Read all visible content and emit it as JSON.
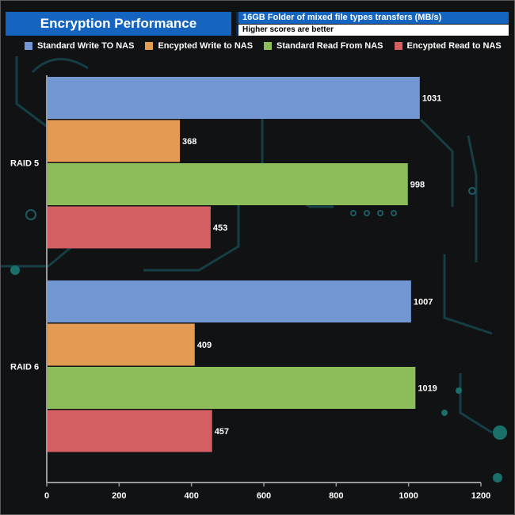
{
  "header": {
    "title": "Encryption Performance",
    "subtitle": "16GB Folder of mixed file types transfers (MB/s)",
    "note": "Higher scores are better"
  },
  "colors": {
    "standard_write": "#7297d2",
    "encrypted_write": "#e39a52",
    "standard_read": "#8dbd5a",
    "encrypted_read": "#d35f63",
    "axis": "#9a9a9a",
    "text": "#ffffff"
  },
  "chart_data": {
    "type": "bar",
    "orientation": "horizontal",
    "title": "Encryption Performance",
    "subtitle": "16GB Folder of mixed file types transfers (MB/s)",
    "categories": [
      "RAID 5",
      "RAID 6"
    ],
    "series": [
      {
        "name": "Standard Write TO NAS",
        "values": [
          1031,
          1007
        ]
      },
      {
        "name": "Encypted Write to NAS",
        "values": [
          368,
          409
        ]
      },
      {
        "name": "Standard Read From NAS",
        "values": [
          998,
          1019
        ]
      },
      {
        "name": "Encypted Read to NAS",
        "values": [
          453,
          457
        ]
      }
    ],
    "xlim": [
      0,
      1200
    ],
    "xticks": [
      "0",
      "200",
      "400",
      "600",
      "800",
      "1000",
      "1200"
    ],
    "legend_position": "top",
    "grid": false,
    "data_labels": true
  }
}
